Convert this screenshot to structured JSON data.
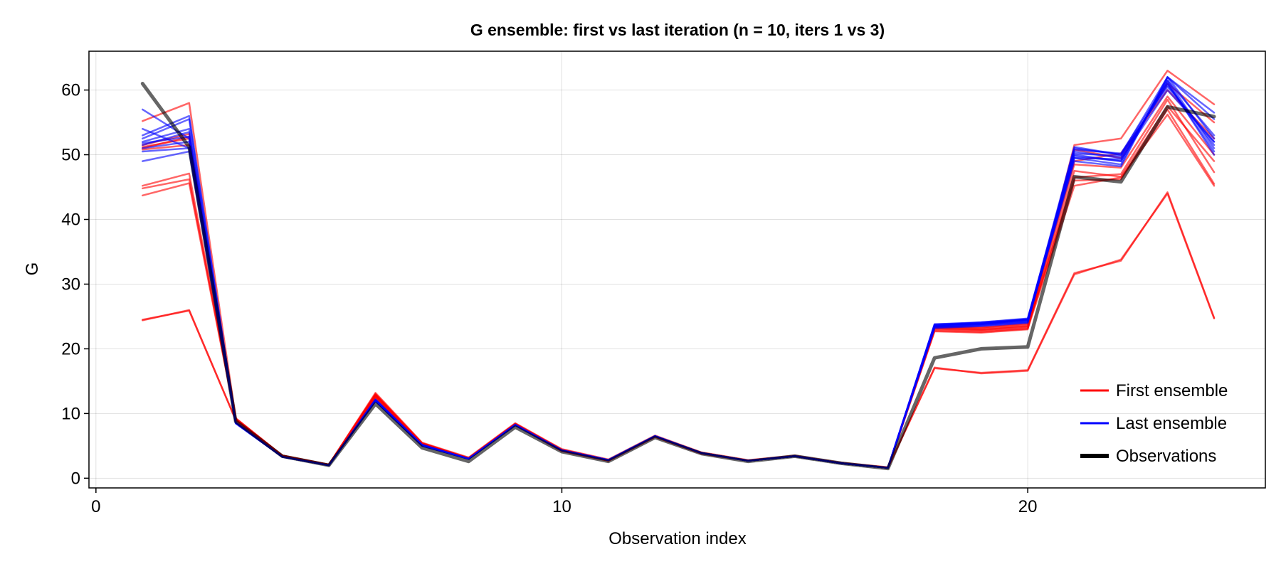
{
  "chart_data": {
    "type": "line",
    "title": "G ensemble: first vs last iteration (n = 10, iters 1 vs 3)",
    "xlabel": "Observation index",
    "ylabel": "G",
    "xlim": [
      -0.15,
      25.1
    ],
    "ylim": [
      -1.5,
      66
    ],
    "xticks": [
      0,
      10,
      20
    ],
    "yticks": [
      0,
      10,
      20,
      30,
      40,
      50,
      60
    ],
    "grid": true,
    "legend_position": "bottom-right",
    "x": [
      1,
      2,
      3,
      4,
      5,
      6,
      7,
      8,
      9,
      10,
      11,
      12,
      13,
      14,
      15,
      16,
      17,
      18,
      19,
      20,
      21,
      22,
      23,
      24
    ],
    "colors": {
      "first": "#ff0000",
      "last": "#0000ff",
      "observations": "#000000"
    },
    "legend": [
      {
        "label": "First ensemble",
        "key": "first"
      },
      {
        "label": "Last ensemble",
        "key": "last"
      },
      {
        "label": "Observations",
        "key": "observations"
      }
    ],
    "series": [
      {
        "group": "first",
        "values": [
          51.2,
          52.5,
          9.2,
          3.5,
          2.1,
          13.2,
          5.5,
          3.2,
          8.5,
          4.5,
          2.9,
          6.6,
          4.0,
          2.8,
          3.5,
          2.4,
          1.7,
          22.8,
          22.6,
          23.1,
          45.2,
          46.5,
          56.2,
          45.2
        ]
      },
      {
        "group": "first",
        "values": [
          55.2,
          58.0,
          9.3,
          3.5,
          2.1,
          13.0,
          5.4,
          3.1,
          8.4,
          4.4,
          2.8,
          6.5,
          3.9,
          2.7,
          3.4,
          2.3,
          1.6,
          23.3,
          23.0,
          23.5,
          46.5,
          47.0,
          58.5,
          47.3
        ]
      },
      {
        "group": "first",
        "values": [
          45.2,
          47.1,
          9.2,
          3.5,
          2.1,
          12.8,
          5.3,
          3.1,
          8.3,
          4.3,
          2.8,
          6.5,
          3.9,
          2.7,
          3.4,
          2.3,
          1.6,
          23.0,
          22.8,
          23.2,
          47.5,
          46.6,
          57.5,
          49.0
        ]
      },
      {
        "group": "first",
        "values": [
          44.8,
          46.2,
          9.1,
          3.4,
          2.1,
          12.7,
          5.3,
          3.0,
          8.3,
          4.3,
          2.8,
          6.4,
          3.9,
          2.7,
          3.4,
          2.3,
          1.6,
          22.7,
          22.5,
          23.0,
          51.5,
          52.5,
          63.0,
          57.8
        ]
      },
      {
        "group": "first",
        "values": [
          43.7,
          45.6,
          9.1,
          3.4,
          2.1,
          12.6,
          5.2,
          3.0,
          8.2,
          4.3,
          2.7,
          6.4,
          3.9,
          2.7,
          3.4,
          2.3,
          1.6,
          23.5,
          23.3,
          23.8,
          49.0,
          50.2,
          60.0,
          52.5
        ]
      },
      {
        "group": "first",
        "values": [
          24.4,
          26.0,
          9.0,
          3.4,
          2.1,
          12.5,
          5.2,
          3.0,
          8.2,
          4.2,
          2.7,
          6.4,
          3.8,
          2.7,
          3.4,
          2.3,
          1.6,
          17.1,
          16.2,
          16.6,
          31.5,
          33.8,
          44.0,
          24.7
        ]
      },
      {
        "group": "first",
        "values": [
          24.5,
          25.9,
          9.0,
          3.4,
          2.1,
          12.4,
          5.2,
          3.0,
          8.2,
          4.2,
          2.7,
          6.4,
          3.8,
          2.7,
          3.4,
          2.3,
          1.6,
          17.0,
          16.3,
          16.7,
          31.7,
          33.6,
          44.2,
          24.8
        ]
      },
      {
        "group": "first",
        "values": [
          51.0,
          52.8,
          9.2,
          3.5,
          2.1,
          13.0,
          5.4,
          3.1,
          8.4,
          4.4,
          2.8,
          6.5,
          3.9,
          2.7,
          3.4,
          2.3,
          1.6,
          23.2,
          23.1,
          23.6,
          50.8,
          49.5,
          61.0,
          55.0
        ]
      },
      {
        "group": "first",
        "values": [
          51.5,
          53.2,
          9.2,
          3.5,
          2.1,
          12.9,
          5.4,
          3.1,
          8.4,
          4.4,
          2.8,
          6.5,
          3.9,
          2.7,
          3.4,
          2.3,
          1.6,
          23.4,
          23.3,
          23.9,
          48.5,
          48.0,
          59.0,
          50.0
        ]
      },
      {
        "group": "first",
        "values": [
          50.8,
          51.5,
          9.1,
          3.5,
          2.1,
          12.8,
          5.3,
          3.1,
          8.3,
          4.4,
          2.8,
          6.5,
          3.9,
          2.7,
          3.4,
          2.3,
          1.6,
          23.1,
          22.9,
          23.4,
          46.0,
          46.2,
          57.0,
          45.5
        ]
      },
      {
        "group": "last",
        "values": [
          57.0,
          52.5,
          8.6,
          3.3,
          2.0,
          12.2,
          5.2,
          3.0,
          8.3,
          4.3,
          2.8,
          6.5,
          3.9,
          2.7,
          3.4,
          2.3,
          1.6,
          23.8,
          24.0,
          24.5,
          50.0,
          49.0,
          61.5,
          53.0
        ]
      },
      {
        "group": "last",
        "values": [
          54.0,
          51.0,
          8.6,
          3.3,
          2.0,
          12.1,
          5.1,
          3.0,
          8.2,
          4.3,
          2.8,
          6.5,
          3.9,
          2.7,
          3.4,
          2.3,
          1.6,
          23.5,
          23.8,
          24.3,
          49.5,
          48.5,
          62.0,
          56.5
        ]
      },
      {
        "group": "last",
        "values": [
          53.0,
          56.0,
          8.5,
          3.3,
          2.0,
          12.0,
          5.1,
          3.0,
          8.2,
          4.3,
          2.8,
          6.5,
          3.9,
          2.7,
          3.4,
          2.3,
          1.6,
          23.2,
          23.5,
          24.0,
          51.0,
          50.0,
          60.5,
          52.0
        ]
      },
      {
        "group": "last",
        "values": [
          52.0,
          54.0,
          8.5,
          3.3,
          2.0,
          12.0,
          5.1,
          3.0,
          8.2,
          4.3,
          2.8,
          6.5,
          3.9,
          2.7,
          3.4,
          2.3,
          1.6,
          23.6,
          24.1,
          24.7,
          50.5,
          49.5,
          61.0,
          50.5
        ]
      },
      {
        "group": "last",
        "values": [
          51.5,
          53.5,
          8.6,
          3.3,
          2.0,
          12.1,
          5.1,
          3.0,
          8.2,
          4.3,
          2.8,
          6.5,
          3.9,
          2.7,
          3.4,
          2.3,
          1.6,
          23.7,
          23.9,
          24.4,
          49.0,
          48.2,
          62.0,
          52.5
        ]
      },
      {
        "group": "last",
        "values": [
          51.0,
          52.0,
          8.5,
          3.3,
          2.0,
          12.0,
          5.1,
          3.0,
          8.2,
          4.3,
          2.8,
          6.5,
          3.9,
          2.7,
          3.4,
          2.3,
          1.6,
          23.4,
          23.7,
          24.2,
          49.8,
          49.0,
          61.5,
          51.0
        ]
      },
      {
        "group": "last",
        "values": [
          50.5,
          51.0,
          8.5,
          3.3,
          2.0,
          11.9,
          5.0,
          3.0,
          8.2,
          4.3,
          2.8,
          6.5,
          3.9,
          2.7,
          3.4,
          2.3,
          1.6,
          23.3,
          23.6,
          24.1,
          50.2,
          49.8,
          60.8,
          51.5
        ]
      },
      {
        "group": "last",
        "values": [
          49.0,
          50.5,
          8.5,
          3.3,
          2.0,
          11.9,
          5.0,
          3.0,
          8.2,
          4.3,
          2.8,
          6.5,
          3.9,
          2.7,
          3.4,
          2.3,
          1.6,
          23.6,
          23.9,
          24.6,
          50.8,
          50.2,
          61.2,
          50.0
        ]
      },
      {
        "group": "last",
        "values": [
          51.8,
          52.8,
          8.6,
          3.3,
          2.0,
          12.0,
          5.1,
          3.0,
          8.2,
          4.3,
          2.8,
          6.5,
          3.9,
          2.7,
          3.4,
          2.3,
          1.6,
          23.8,
          24.1,
          24.6,
          49.5,
          49.3,
          60.0,
          52.0
        ]
      },
      {
        "group": "last",
        "values": [
          52.5,
          55.5,
          8.6,
          3.3,
          2.0,
          12.0,
          5.1,
          3.0,
          8.2,
          4.3,
          2.8,
          6.5,
          3.9,
          2.7,
          3.4,
          2.3,
          1.6,
          23.5,
          23.8,
          24.5,
          51.2,
          50.0,
          62.0,
          55.5
        ]
      },
      {
        "group": "observations",
        "values": [
          61.0,
          51.2,
          8.8,
          3.4,
          2.0,
          11.5,
          4.7,
          2.6,
          7.9,
          4.1,
          2.6,
          6.3,
          3.8,
          2.6,
          3.4,
          2.3,
          1.5,
          18.6,
          20.0,
          20.3,
          46.6,
          45.8,
          57.4,
          55.9
        ]
      }
    ]
  }
}
